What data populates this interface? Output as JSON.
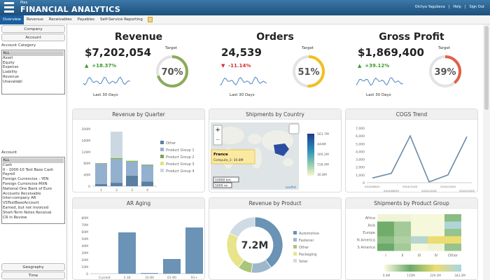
{
  "header": {
    "brand_small": "Plex",
    "title": "FINANCIAL ANALYTICS",
    "user": "Olchya Yagubeva",
    "help": "Help",
    "sign_out": "Sign Out"
  },
  "tabs": [
    "Overview",
    "Revenue",
    "Receivables",
    "Payables",
    "Self-Service Reporting"
  ],
  "sidebar": {
    "company": "Company",
    "account": "Account",
    "account_category_label": "Account Category",
    "account_categories": [
      "ALL",
      "Asset",
      "Equity",
      "Expense",
      "Liability",
      "Revenue",
      "Unavailabl"
    ],
    "account_label": "Account",
    "accounts": [
      "ALL",
      "Cash",
      "0 - 1000-10 Test Base Cash",
      "Payroll",
      "Foreign Currencies - YEN",
      "Foreign Currencies-MXN",
      "National One Bank of Euro",
      "Accounts Receivable",
      "Inter-company AR",
      "VSTestBaseAccount",
      "Earned, but not invoiced",
      "Short-Term Notes Receival",
      "CR in Review"
    ],
    "geography": "Geography",
    "time": "Time"
  },
  "kpis": [
    {
      "title": "Revenue",
      "value": "$7,202,054",
      "change": "+18.37%",
      "direction": "up",
      "target_label": "Target",
      "target": 70,
      "target_text": "70%",
      "period": "Last 30 Days",
      "color": "#8aab5a"
    },
    {
      "title": "Orders",
      "value": "24,539",
      "change": "-11.14%",
      "direction": "down",
      "target_label": "Target",
      "target": 51,
      "target_text": "51%",
      "period": "Last 30 Days",
      "color": "#f0c020"
    },
    {
      "title": "Gross Profit",
      "value": "$1,869,400",
      "change": "+39.12%",
      "direction": "up",
      "target_label": "Target",
      "target": 39,
      "target_text": "39%",
      "period": "Last 30 Days",
      "color": "#e0604a"
    }
  ],
  "colors": {
    "up": "#3a9a2a",
    "down": "#d03030",
    "bar": "#6a93b5"
  },
  "chart_data": [
    {
      "type": "bar",
      "title": "Revenue by Quarter",
      "stacked": true,
      "categories": [
        "1",
        "2",
        "3",
        "4"
      ],
      "yticks": [
        "0",
        "40M",
        "80M",
        "120M",
        "160M",
        "200M"
      ],
      "ylim": [
        0,
        200
      ],
      "series": [
        {
          "name": "Other",
          "color": "#5b7fa3",
          "values": [
            8,
            12,
            37,
            16
          ]
        },
        {
          "name": "Product Group 1",
          "color": "#93b0cf",
          "values": [
            70,
            83,
            49,
            56
          ]
        },
        {
          "name": "Product Group 2",
          "color": "#7aa55a",
          "values": [
            2,
            3,
            2,
            3
          ]
        },
        {
          "name": "Product Group 3",
          "color": "#dde57a",
          "values": [
            0,
            2,
            2,
            0
          ]
        },
        {
          "name": "Product Group 4",
          "color": "#cbd8e2",
          "values": [
            0,
            90,
            0,
            0
          ]
        }
      ]
    },
    {
      "type": "map",
      "title": "Shipments by Country",
      "tooltip_title": "France",
      "tooltip_value": "Compute_1: 30.8M",
      "legend": [
        "561.7M",
        "444M",
        "300.2M",
        "158.4M",
        "30.8M"
      ],
      "scale_km": "10000 km",
      "scale_mi": "5000 mi",
      "attribution": "Leaflet",
      "zoom_in": "+",
      "zoom_out": "−"
    },
    {
      "type": "line",
      "title": "COGS Trend",
      "categories": [
        "2014/08/21",
        "2014/08/25",
        "2014/12/01",
        "2014/12/02",
        "2014/12/04",
        "2014/12/05"
      ],
      "values": [
        600,
        1200,
        6000,
        100,
        1000,
        5900
      ],
      "yticks": [
        "0",
        "1,000",
        "2,000",
        "3,000",
        "4,000",
        "5,000",
        "6,000",
        "7,000"
      ],
      "ylim": [
        0,
        7000
      ]
    },
    {
      "type": "bar",
      "title": "AR Aging",
      "categories": [
        "Current",
        "1-30",
        "31-60",
        "61-90",
        "91+"
      ],
      "values": [
        0,
        59,
        1,
        21,
        66
      ],
      "yticks": [
        "0",
        "10M",
        "20M",
        "30M",
        "40M",
        "50M",
        "60M",
        "70M",
        "80M"
      ],
      "ylim": [
        0,
        80
      ]
    },
    {
      "type": "pie",
      "title": "Revenue by Product",
      "center_label": "7.2M",
      "categories": [
        "Automotive",
        "Fastener",
        "Other",
        "Packaging",
        "Solar"
      ],
      "values": [
        40,
        12,
        8,
        22,
        18
      ],
      "colors": [
        "#6a93b5",
        "#9fb7cc",
        "#a8c57a",
        "#e8e48a",
        "#cfdbe4"
      ]
    },
    {
      "type": "heatmap",
      "title": "Shipments by Product Group",
      "rows": [
        "Africa",
        "Asia",
        "Europe",
        "N America",
        "S America"
      ],
      "columns": [
        "I",
        "II",
        "III",
        "IV",
        "Other"
      ],
      "values": [
        [
          10,
          10,
          5,
          5,
          90
        ],
        [
          120,
          70,
          5,
          5,
          330
        ],
        [
          120,
          70,
          5,
          5,
          80
        ],
        [
          90,
          60,
          320,
          229,
          229
        ],
        [
          115,
          70,
          5,
          10,
          80
        ]
      ],
      "scale": [
        "0.4M",
        "115M",
        "229.1M",
        "343.2M"
      ]
    }
  ]
}
